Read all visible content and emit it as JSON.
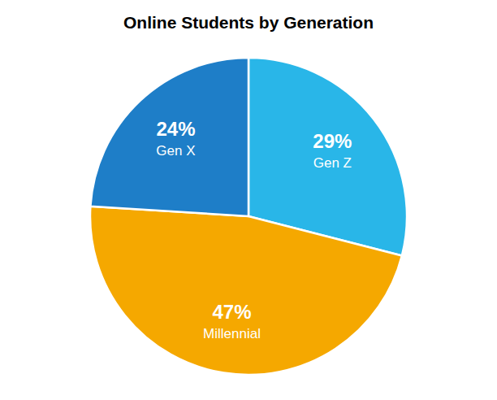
{
  "chart_data": {
    "type": "pie",
    "title": "Online Students by Generation",
    "categories": [
      "Gen Z",
      "Millennial",
      "Gen X"
    ],
    "values": [
      29,
      47,
      24
    ],
    "value_labels": [
      "29%",
      "47%",
      "24%"
    ],
    "colors": [
      "#29B6E8",
      "#F5A800",
      "#1E7EC8"
    ],
    "data_labels": true
  }
}
